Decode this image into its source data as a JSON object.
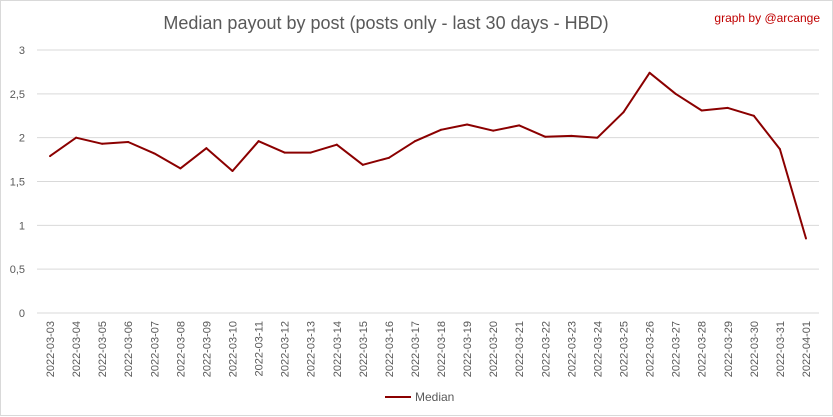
{
  "chart_data": {
    "type": "line",
    "title": "Median payout by post (posts only - last 30 days - HBD)",
    "credit": "graph by @arcange",
    "x": [
      "2022-03-03",
      "2022-03-04",
      "2022-03-05",
      "2022-03-06",
      "2022-03-07",
      "2022-03-08",
      "2022-03-09",
      "2022-03-10",
      "2022-03-11",
      "2022-03-12",
      "2022-03-13",
      "2022-03-14",
      "2022-03-15",
      "2022-03-16",
      "2022-03-17",
      "2022-03-18",
      "2022-03-19",
      "2022-03-20",
      "2022-03-21",
      "2022-03-22",
      "2022-03-23",
      "2022-03-24",
      "2022-03-25",
      "2022-03-26",
      "2022-03-27",
      "2022-03-28",
      "2022-03-29",
      "2022-03-30",
      "2022-03-31",
      "2022-04-01"
    ],
    "series": [
      {
        "name": "Median",
        "color": "#8b0000",
        "values": [
          1.79,
          2.0,
          1.93,
          1.95,
          1.82,
          1.65,
          1.88,
          1.62,
          1.96,
          1.83,
          1.83,
          1.92,
          1.69,
          1.77,
          1.96,
          2.09,
          2.15,
          2.08,
          2.14,
          2.01,
          2.02,
          2.0,
          2.29,
          2.74,
          2.5,
          2.31,
          2.34,
          2.25,
          1.87,
          0.85
        ]
      }
    ],
    "y_ticks": [
      "0",
      "0,5",
      "1",
      "1,5",
      "2",
      "2,5",
      "3"
    ],
    "ylim": [
      0,
      3
    ],
    "grid": true,
    "legend_position": "bottom"
  }
}
